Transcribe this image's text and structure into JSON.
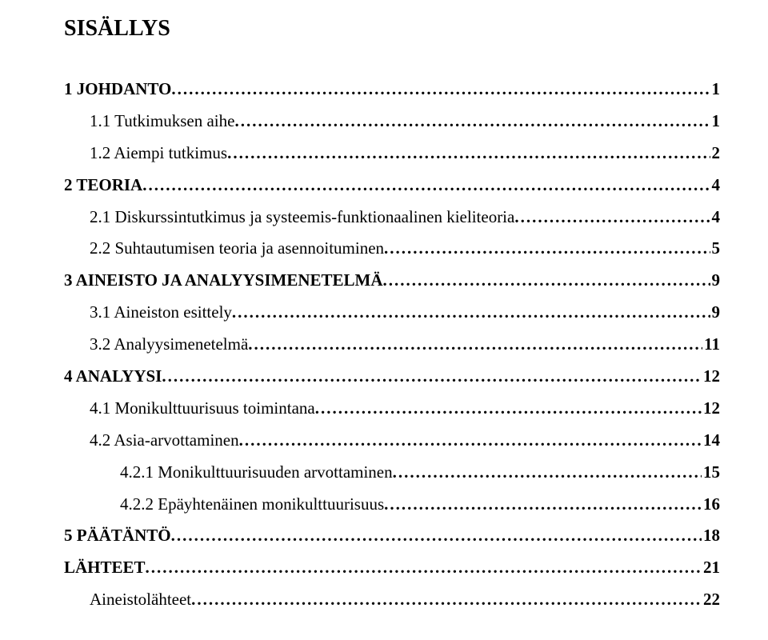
{
  "title": "SISÄLLYS",
  "entries": [
    {
      "label": "1 JOHDANTO",
      "page": "1",
      "bold": true,
      "indent": 0
    },
    {
      "label": "1.1 Tutkimuksen aihe",
      "page": "1",
      "bold": false,
      "indent": 1
    },
    {
      "label": "1.2 Aiempi tutkimus",
      "page": "2",
      "bold": false,
      "indent": 1
    },
    {
      "label": "2 TEORIA",
      "page": "4",
      "bold": true,
      "indent": 0
    },
    {
      "label": "2.1 Diskurssintutkimus ja systeemis-funktionaalinen kieliteoria",
      "page": "4",
      "bold": false,
      "indent": 1
    },
    {
      "label": "2.2 Suhtautumisen teoria ja asennoituminen",
      "page": "5",
      "bold": false,
      "indent": 1
    },
    {
      "label": "3 AINEISTO JA ANALYYSIMENETELMÄ",
      "page": "9",
      "bold": true,
      "indent": 0
    },
    {
      "label": "3.1 Aineiston esittely",
      "page": "9",
      "bold": false,
      "indent": 1
    },
    {
      "label": "3.2 Analyysimenetelmä",
      "page": "11",
      "bold": false,
      "indent": 1
    },
    {
      "label": "4 ANALYYSI",
      "page": "12",
      "bold": true,
      "indent": 0
    },
    {
      "label": "4.1 Monikulttuurisuus toimintana",
      "page": "12",
      "bold": false,
      "indent": 1
    },
    {
      "label": "4.2 Asia-arvottaminen",
      "page": "14",
      "bold": false,
      "indent": 1
    },
    {
      "label": "4.2.1 Monikulttuurisuuden arvottaminen",
      "page": "15",
      "bold": false,
      "indent": 2
    },
    {
      "label": "4.2.2 Epäyhtenäinen monikulttuurisuus",
      "page": "16",
      "bold": false,
      "indent": 2
    },
    {
      "label": "5 PÄÄTÄNTÖ",
      "page": "18",
      "bold": true,
      "indent": 0
    },
    {
      "label": "LÄHTEET",
      "page": "21",
      "bold": true,
      "indent": 0
    },
    {
      "label": "Aineistolähteet",
      "page": "22",
      "bold": false,
      "indent": 3
    }
  ]
}
